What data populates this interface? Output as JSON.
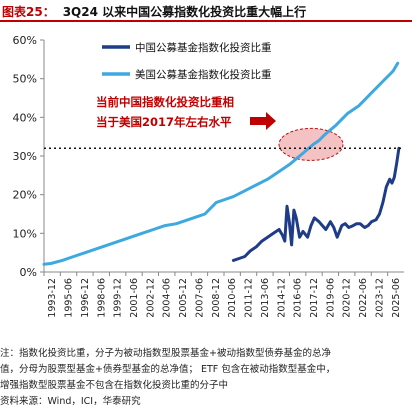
{
  "header": {
    "figure_label": "图表25：",
    "title": "3Q24 以来中国公募指数化投资比重大幅上行"
  },
  "colors": {
    "china": "#1f3c88",
    "us": "#3ea8e0",
    "accent": "#c00000",
    "highlight": "#f4bfbf"
  },
  "annotation": {
    "line1": "当前中国指数化投资比重相",
    "line2": "当于美国2017年左右水平"
  },
  "notes": {
    "line1": "注：指数化投资比重，分子为被动指数型股票基金+被动指数型债券基金的总净",
    "line2": "值，分母为股票型基金+债券型基金的总净值； ETF 包含在被动指数型基金中，",
    "line3": "增强指数型股票基金不包含在指数化投资比重的分子中",
    "source": "资料来源：Wind，ICI，华泰研究"
  },
  "chart_data": {
    "type": "line",
    "ylim": [
      0,
      60
    ],
    "yticks": [
      "0%",
      "10%",
      "20%",
      "30%",
      "40%",
      "50%",
      "60%"
    ],
    "xticks": [
      "1993-12",
      "1995-06",
      "1996-12",
      "1998-06",
      "1999-12",
      "2001-06",
      "2002-12",
      "2004-06",
      "2005-12",
      "2007-06",
      "2008-12",
      "2010-06",
      "2011-12",
      "2013-06",
      "2014-12",
      "2016-06",
      "2017-12",
      "2019-06",
      "2020-12",
      "2022-06",
      "2023-12",
      "2025-06"
    ],
    "reference_level": 32,
    "series": [
      {
        "name": "美国公募基金指数化投资比重",
        "x": [
          1993.9,
          1994.5,
          1995.5,
          1996.5,
          1997.5,
          1998.5,
          1999.5,
          2000.5,
          2001.5,
          2002.5,
          2003.5,
          2004.5,
          2005.5,
          2006.5,
          2007.5,
          2008.0,
          2008.5,
          2009.0,
          2009.5,
          2010.5,
          2011.5,
          2012.5,
          2013.5,
          2014.5,
          2015.5,
          2016.5,
          2017.5,
          2018.0,
          2018.5,
          2019.5,
          2020.5,
          2021.5,
          2022.0,
          2022.5,
          2023.5,
          2024.5,
          2024.9
        ],
        "values": [
          2,
          2.2,
          3,
          4,
          5,
          6,
          7,
          8,
          9,
          10,
          11,
          12,
          12.5,
          13.5,
          14.5,
          15,
          16.5,
          18,
          18.5,
          19.5,
          21,
          22.5,
          24,
          26,
          28,
          30.5,
          33,
          34,
          35.5,
          38,
          41,
          43,
          44.5,
          46,
          49,
          52,
          54
        ]
      },
      {
        "name": "中国公募基金指数化投资比重",
        "x": [
          2010.5,
          2011.0,
          2011.5,
          2012.0,
          2012.5,
          2013.0,
          2013.5,
          2014.0,
          2014.5,
          2014.8,
          2015.0,
          2015.2,
          2015.4,
          2015.6,
          2015.8,
          2016.0,
          2016.3,
          2016.6,
          2017.0,
          2017.3,
          2017.6,
          2018.0,
          2018.3,
          2018.6,
          2019.0,
          2019.3,
          2019.6,
          2020.0,
          2020.3,
          2020.6,
          2021.0,
          2021.3,
          2021.6,
          2022.0,
          2022.3,
          2022.6,
          2023.0,
          2023.3,
          2023.6,
          2023.9,
          2024.2,
          2024.4,
          2024.6,
          2024.8,
          2025.0
        ],
        "values": [
          3,
          3.5,
          4,
          5.5,
          6.5,
          8,
          9,
          10,
          11,
          9.5,
          8,
          17,
          13,
          7,
          16,
          14,
          9,
          10.5,
          9,
          12,
          14,
          13,
          12,
          11,
          13,
          11.5,
          9,
          12,
          12.5,
          11.5,
          12,
          12.5,
          12.5,
          11.5,
          12,
          13,
          13.5,
          15,
          18,
          22,
          24,
          23,
          24.5,
          28,
          32
        ]
      }
    ]
  }
}
